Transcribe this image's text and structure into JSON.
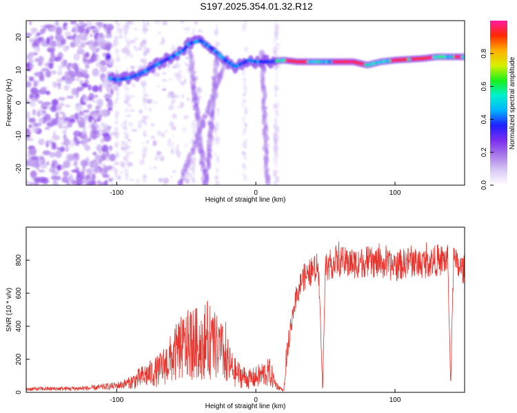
{
  "title": "S197.2025.354.01.32.R12",
  "colors": {
    "snr_line": "#e8312a",
    "frame": "#000000",
    "colormap": [
      "#ffffff",
      "#d9c8f5",
      "#a97ae8",
      "#7b2ff0",
      "#1f1fff",
      "#00b3ff",
      "#00f0d0",
      "#19f019",
      "#d8f000",
      "#ffb000",
      "#ff2a00",
      "#ff1aa0"
    ]
  },
  "chart_data": [
    {
      "type": "heatmap",
      "title": "S197.2025.354.01.32.R12",
      "xlabel": "Height of straight line (km)",
      "ylabel": "Frequency (Hz)",
      "xlim": [
        -165,
        150
      ],
      "ylim": [
        -25,
        25
      ],
      "xticks": [
        -100,
        0,
        100
      ],
      "yticks": [
        -20,
        -10,
        0,
        10,
        20
      ],
      "colorbar": {
        "label": "Normalized spectral amplitude",
        "range": [
          0,
          1
        ],
        "ticks": [
          "0.0",
          "0.2",
          "0.4",
          "0.6",
          "0.8"
        ]
      },
      "ridge": [
        {
          "x": -105,
          "y": 7.5
        },
        {
          "x": -100,
          "y": 7
        },
        {
          "x": -92,
          "y": 7.5
        },
        {
          "x": -85,
          "y": 8.5
        },
        {
          "x": -80,
          "y": 9.5
        },
        {
          "x": -72,
          "y": 11.5
        },
        {
          "x": -65,
          "y": 13
        },
        {
          "x": -58,
          "y": 14.5
        },
        {
          "x": -52,
          "y": 16
        },
        {
          "x": -48,
          "y": 18
        },
        {
          "x": -40,
          "y": 19
        },
        {
          "x": -30,
          "y": 16
        },
        {
          "x": -22,
          "y": 13
        },
        {
          "x": -15,
          "y": 11
        },
        {
          "x": -10,
          "y": 12
        },
        {
          "x": -5,
          "y": 13
        },
        {
          "x": 0,
          "y": 12.5
        },
        {
          "x": 10,
          "y": 12.5
        },
        {
          "x": 20,
          "y": 13
        },
        {
          "x": 30,
          "y": 12.5
        },
        {
          "x": 50,
          "y": 12.5
        },
        {
          "x": 70,
          "y": 12.5
        },
        {
          "x": 80,
          "y": 11.5
        },
        {
          "x": 90,
          "y": 12.5
        },
        {
          "x": 100,
          "y": 13
        },
        {
          "x": 120,
          "y": 13.5
        },
        {
          "x": 130,
          "y": 14
        },
        {
          "x": 145,
          "y": 14
        },
        {
          "x": 150,
          "y": 14
        }
      ]
    },
    {
      "type": "line",
      "xlabel": "Height of straight line (km)",
      "ylabel": "SNR (10 * v/v)",
      "xlim": [
        -165,
        150
      ],
      "ylim": [
        0,
        1000
      ],
      "xticks": [
        -100,
        0,
        100
      ],
      "yticks": [
        0,
        200,
        400,
        600,
        800
      ],
      "series": [
        {
          "x": [
            -165,
            -140,
            -120,
            -100,
            -90,
            -80,
            -70,
            -65,
            -60,
            -55,
            -50,
            -45,
            -40,
            -35,
            -30,
            -25,
            -20,
            -15,
            -10,
            -5,
            0,
            5,
            10,
            15,
            20,
            25,
            28,
            30,
            33,
            35,
            38,
            40,
            45,
            48,
            50,
            55,
            60,
            70,
            80,
            90,
            100,
            110,
            120,
            130,
            138,
            140,
            142,
            145,
            150
          ],
          "y": [
            20,
            22,
            25,
            40,
            60,
            100,
            130,
            170,
            210,
            260,
            280,
            300,
            290,
            320,
            280,
            250,
            180,
            120,
            100,
            80,
            90,
            110,
            120,
            40,
            10,
            380,
            550,
            600,
            680,
            700,
            720,
            730,
            760,
            20,
            760,
            780,
            790,
            780,
            790,
            780,
            760,
            790,
            780,
            800,
            800,
            30,
            800,
            760,
            740
          ]
        }
      ]
    }
  ]
}
